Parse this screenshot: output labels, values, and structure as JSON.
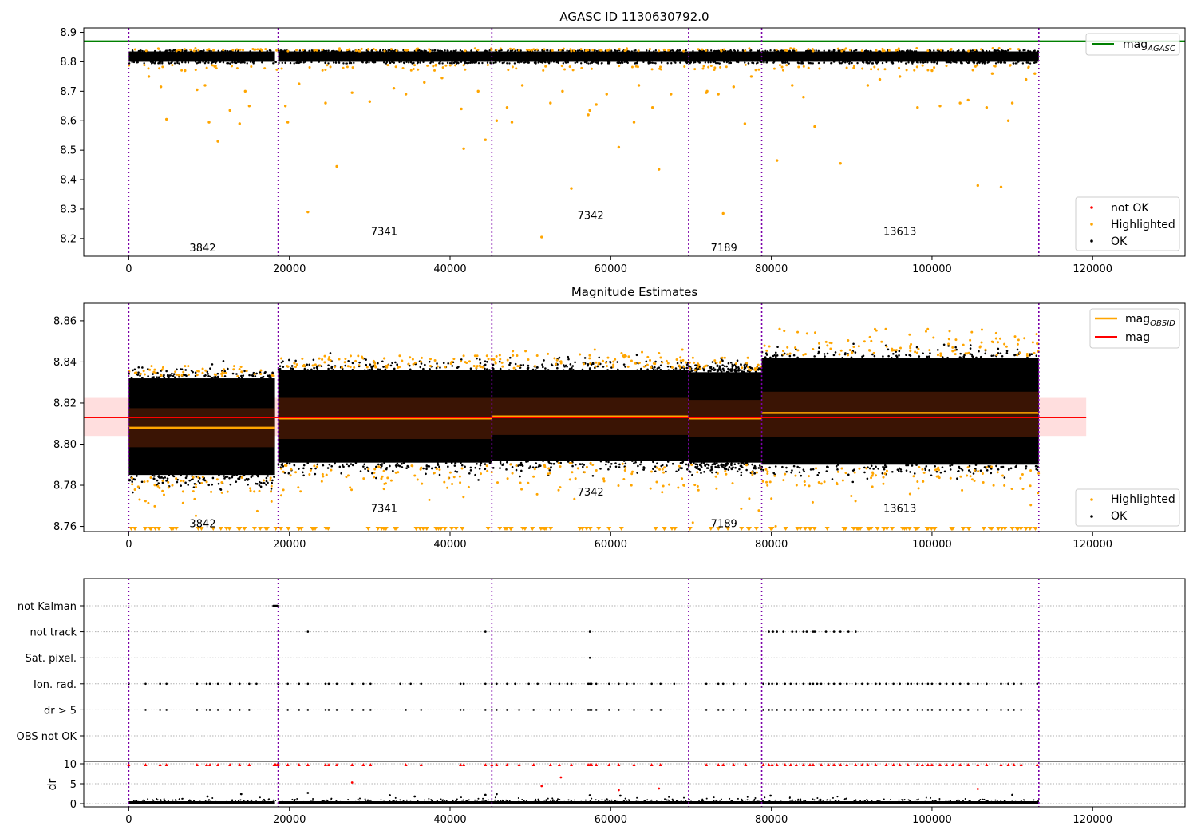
{
  "chart_data": [
    {
      "type": "scatter",
      "title": "AGASC ID 1130630792.0",
      "xlim": [
        -5600,
        131500
      ],
      "ylim": [
        8.14,
        8.915
      ],
      "xticks": [
        0,
        20000,
        40000,
        60000,
        80000,
        100000,
        120000
      ],
      "xtick_labels": [
        "0",
        "20000",
        "40000",
        "60000",
        "80000",
        "100000",
        "120000"
      ],
      "yticks": [
        8.2,
        8.3,
        8.4,
        8.5,
        8.6,
        8.7,
        8.8,
        8.9
      ],
      "ytick_labels": [
        "8.2",
        "8.3",
        "8.4",
        "8.5",
        "8.6",
        "8.7",
        "8.8",
        "8.9"
      ],
      "mag_agasc": 8.87,
      "obsid_boundaries": [
        0,
        18600,
        45200,
        69700,
        78800,
        113300
      ],
      "obsid_labels": [
        {
          "text": "3842",
          "x": 9200,
          "y": 8.17
        },
        {
          "text": "7341",
          "x": 31800,
          "y": 8.225
        },
        {
          "text": "7342",
          "x": 57500,
          "y": 8.28
        },
        {
          "text": "7189",
          "x": 74100,
          "y": 8.17
        },
        {
          "text": "13613",
          "x": 96000,
          "y": 8.225
        }
      ],
      "ok_band": [
        8.8,
        8.835
      ],
      "highlighted_points": [
        [
          4700,
          8.605
        ],
        [
          10000,
          8.595
        ],
        [
          11100,
          8.53
        ],
        [
          13800,
          8.59
        ],
        [
          12600,
          8.635
        ],
        [
          15000,
          8.65
        ],
        [
          9500,
          8.72
        ],
        [
          8500,
          8.705
        ],
        [
          7000,
          8.77
        ],
        [
          14500,
          8.7
        ],
        [
          4000,
          8.715
        ],
        [
          2500,
          8.75
        ],
        [
          19500,
          8.65
        ],
        [
          19800,
          8.595
        ],
        [
          22300,
          8.29
        ],
        [
          25900,
          8.445
        ],
        [
          24500,
          8.66
        ],
        [
          27800,
          8.695
        ],
        [
          30000,
          8.665
        ],
        [
          21200,
          8.725
        ],
        [
          33000,
          8.71
        ],
        [
          34500,
          8.69
        ],
        [
          36800,
          8.73
        ],
        [
          41400,
          8.64
        ],
        [
          41700,
          8.505
        ],
        [
          44400,
          8.535
        ],
        [
          43500,
          8.7
        ],
        [
          39000,
          8.745
        ],
        [
          45800,
          8.6
        ],
        [
          47100,
          8.645
        ],
        [
          47700,
          8.595
        ],
        [
          51400,
          8.205
        ],
        [
          52500,
          8.66
        ],
        [
          55100,
          8.37
        ],
        [
          57400,
          8.635
        ],
        [
          57200,
          8.62
        ],
        [
          58200,
          8.655
        ],
        [
          61000,
          8.51
        ],
        [
          62900,
          8.595
        ],
        [
          65200,
          8.645
        ],
        [
          66000,
          8.435
        ],
        [
          49000,
          8.72
        ],
        [
          54000,
          8.7
        ],
        [
          59500,
          8.69
        ],
        [
          63500,
          8.72
        ],
        [
          67500,
          8.69
        ],
        [
          71900,
          8.695
        ],
        [
          72000,
          8.7
        ],
        [
          73400,
          8.69
        ],
        [
          74000,
          8.285
        ],
        [
          75300,
          8.715
        ],
        [
          76700,
          8.59
        ],
        [
          77500,
          8.75
        ],
        [
          80700,
          8.465
        ],
        [
          82600,
          8.72
        ],
        [
          84000,
          8.68
        ],
        [
          85400,
          8.58
        ],
        [
          88600,
          8.455
        ],
        [
          92000,
          8.72
        ],
        [
          93500,
          8.74
        ],
        [
          98200,
          8.645
        ],
        [
          101000,
          8.65
        ],
        [
          103500,
          8.66
        ],
        [
          104500,
          8.67
        ],
        [
          105700,
          8.38
        ],
        [
          106800,
          8.645
        ],
        [
          108600,
          8.375
        ],
        [
          109500,
          8.6
        ],
        [
          110000,
          8.66
        ],
        [
          111700,
          8.74
        ],
        [
          112800,
          8.76
        ],
        [
          96000,
          8.75
        ],
        [
          100000,
          8.77
        ],
        [
          107500,
          8.76
        ]
      ],
      "legends": [
        {
          "label": "mag",
          "subscript": "AGASC",
          "marker": "line",
          "color": "#008000"
        },
        {
          "label": "not OK",
          "marker": "dot",
          "color": "#ff0000"
        },
        {
          "label": "Highlighted",
          "marker": "dot",
          "color": "#ffa500"
        },
        {
          "label": "OK",
          "marker": "dot",
          "color": "#000000"
        }
      ]
    },
    {
      "type": "scatter",
      "title": "Magnitude Estimates",
      "xlim": [
        -5600,
        131500
      ],
      "ylim": [
        8.7575,
        8.8685
      ],
      "xticks": [
        0,
        20000,
        40000,
        60000,
        80000,
        100000,
        120000
      ],
      "xtick_labels": [
        "0",
        "20000",
        "40000",
        "60000",
        "80000",
        "100000",
        "120000"
      ],
      "yticks": [
        8.76,
        8.78,
        8.8,
        8.82,
        8.84,
        8.86
      ],
      "ytick_labels": [
        "8.76",
        "8.78",
        "8.80",
        "8.82",
        "8.84",
        "8.86"
      ],
      "mag": 8.813,
      "mag_band": [
        8.804,
        8.8225
      ],
      "obsid_boundaries": [
        0,
        18600,
        45200,
        69700,
        78800,
        113300
      ],
      "obsid_labels": [
        {
          "text": "3842",
          "x": 9200,
          "y": 8.7615
        },
        {
          "text": "7341",
          "x": 31800,
          "y": 8.769
        },
        {
          "text": "7342",
          "x": 57500,
          "y": 8.777
        },
        {
          "text": "7189",
          "x": 74100,
          "y": 8.7615
        },
        {
          "text": "13613",
          "x": 96000,
          "y": 8.769
        }
      ],
      "segments": [
        {
          "x0": 0,
          "x1": 18100,
          "mag": 8.808,
          "ok_lo": 8.785,
          "ok_hi": 8.832,
          "inner_lo": 8.7985,
          "inner_hi": 8.8175,
          "hl_lo": 8.77,
          "hl_hi": 8.838
        },
        {
          "x0": 18600,
          "x1": 45200,
          "mag": 8.8125,
          "ok_lo": 8.791,
          "ok_hi": 8.836,
          "inner_lo": 8.8025,
          "inner_hi": 8.8225,
          "hl_lo": 8.775,
          "hl_hi": 8.843
        },
        {
          "x0": 45200,
          "x1": 69700,
          "mag": 8.8135,
          "ok_lo": 8.792,
          "ok_hi": 8.836,
          "inner_lo": 8.8045,
          "inner_hi": 8.8225,
          "hl_lo": 8.775,
          "hl_hi": 8.846
        },
        {
          "x0": 69700,
          "x1": 78800,
          "mag": 8.8125,
          "ok_lo": 8.791,
          "ok_hi": 8.835,
          "inner_lo": 8.8035,
          "inner_hi": 8.8215,
          "hl_lo": 8.77,
          "hl_hi": 8.842
        },
        {
          "x0": 78800,
          "x1": 113300,
          "mag": 8.8152,
          "ok_lo": 8.79,
          "ok_hi": 8.842,
          "inner_lo": 8.8035,
          "inner_hi": 8.8255,
          "hl_lo": 8.775,
          "hl_hi": 8.856
        }
      ],
      "legends": [
        {
          "label": "mag",
          "subscript": "OBSID",
          "marker": "line",
          "color": "#ffa500"
        },
        {
          "label": "mag",
          "marker": "line",
          "color": "#ff0000"
        },
        {
          "label": "Highlighted",
          "marker": "dot",
          "color": "#ffa500"
        },
        {
          "label": "OK",
          "marker": "dot",
          "color": "#000000"
        }
      ]
    },
    {
      "type": "scatter",
      "title": "",
      "xlim": [
        -5600,
        131500
      ],
      "categories": [
        "not Kalman",
        "not track",
        "Sat. pixel.",
        "Ion. rad.",
        "dr > 5",
        "OBS not OK"
      ],
      "flag_points": {
        "not Kalman": [
          18000,
          18100,
          18200,
          18300,
          18400,
          18500
        ],
        "not track": [
          22300,
          44400,
          57400,
          79700,
          80200,
          80700,
          81500,
          82600,
          83100,
          84000,
          84400,
          85200,
          85400,
          86800,
          87800,
          88600,
          89600,
          90500
        ],
        "Sat. pixel.": [
          57400
        ],
        "Ion. rad.": [
          0,
          2100,
          3900,
          4700,
          8500,
          9700,
          10100,
          11100,
          12600,
          13800,
          15000,
          15900,
          18600,
          19800,
          21200,
          22300,
          24500,
          24900,
          25900,
          27800,
          29200,
          30100,
          33800,
          35100,
          36400,
          41300,
          41700,
          44400,
          45200,
          45800,
          47100,
          48100,
          49800,
          50900,
          52500,
          53600,
          54600,
          55100,
          57200,
          57400,
          57600,
          58200,
          59800,
          61000,
          62000,
          62900,
          65100,
          66200,
          67900,
          71900,
          73400,
          74000,
          75300,
          76800,
          79000,
          79700,
          80100,
          80700,
          81700,
          82400,
          83100,
          84000,
          84800,
          85200,
          85700,
          86200,
          87100,
          87800,
          88600,
          89400,
          90500,
          91300,
          92000,
          93000,
          93500,
          94300,
          95200,
          96000,
          97000,
          97400,
          98200,
          98800,
          99500,
          100000,
          101000,
          101800,
          102600,
          103500,
          104500,
          105700,
          106800,
          108600,
          109500,
          110200,
          111100,
          113100
        ],
        "dr > 5": [
          0,
          2100,
          3900,
          4700,
          8500,
          9700,
          10100,
          11100,
          12600,
          13800,
          15000,
          18600,
          19800,
          21200,
          22300,
          24500,
          24900,
          25900,
          27800,
          29200,
          30100,
          34500,
          36400,
          41300,
          41700,
          44400,
          45200,
          45800,
          47100,
          48600,
          50400,
          52500,
          53600,
          55100,
          57200,
          57400,
          57600,
          58200,
          59800,
          61000,
          62900,
          65100,
          66200,
          71900,
          73400,
          74000,
          75300,
          76800,
          79000,
          79700,
          80100,
          80700,
          81700,
          82400,
          83100,
          84000,
          84800,
          85200,
          86200,
          87100,
          87800,
          88600,
          89400,
          90500,
          91300,
          92000,
          93000,
          94300,
          95200,
          96000,
          97000,
          98200,
          98800,
          99500,
          100000,
          101000,
          101800,
          102600,
          103500,
          104500,
          105700,
          106800,
          108600,
          109500,
          110200,
          111100,
          113100
        ],
        "OBS not OK": []
      },
      "dr_ylim": [
        -0.8,
        10.6
      ],
      "yticks": [
        0,
        5,
        10
      ],
      "ytick_labels": [
        "0",
        "5",
        "10"
      ],
      "ylabel": "dr",
      "dr_outliers": [
        [
          27800,
          5.3
        ],
        [
          53800,
          6.6
        ],
        [
          51400,
          4.4
        ],
        [
          61000,
          3.4
        ],
        [
          66000,
          3.8
        ],
        [
          105700,
          3.7
        ],
        [
          14000,
          2.4
        ],
        [
          22300,
          2.7
        ],
        [
          32500,
          2.1
        ],
        [
          44400,
          2.2
        ],
        [
          45800,
          2.4
        ],
        [
          57400,
          2.1
        ],
        [
          61200,
          2.0
        ],
        [
          79900,
          2.0
        ],
        [
          110000,
          2.2
        ],
        [
          35600,
          1.8
        ],
        [
          9800,
          1.8
        ]
      ],
      "xticks": [
        0,
        20000,
        40000,
        60000,
        80000,
        100000,
        120000
      ],
      "xtick_labels": [
        "0",
        "20000",
        "40000",
        "60000",
        "80000",
        "100000",
        "120000"
      ],
      "obsid_boundaries": [
        0,
        18600,
        45200,
        69700,
        78800,
        113300
      ]
    }
  ]
}
